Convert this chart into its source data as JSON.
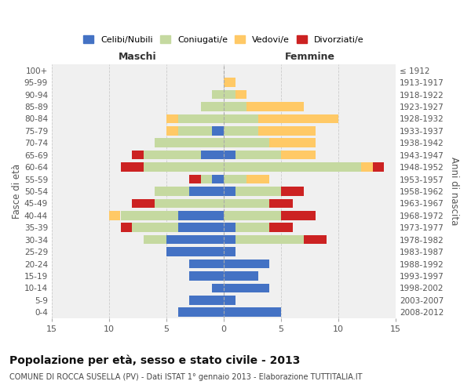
{
  "age_groups": [
    "100+",
    "95-99",
    "90-94",
    "85-89",
    "80-84",
    "75-79",
    "70-74",
    "65-69",
    "60-64",
    "55-59",
    "50-54",
    "45-49",
    "40-44",
    "35-39",
    "30-34",
    "25-29",
    "20-24",
    "15-19",
    "10-14",
    "5-9",
    "0-4"
  ],
  "birth_years": [
    "≤ 1912",
    "1913-1917",
    "1918-1922",
    "1923-1927",
    "1928-1932",
    "1933-1937",
    "1938-1942",
    "1943-1947",
    "1948-1952",
    "1953-1957",
    "1958-1962",
    "1963-1967",
    "1968-1972",
    "1973-1977",
    "1978-1982",
    "1983-1987",
    "1988-1992",
    "1993-1997",
    "1998-2002",
    "2003-2007",
    "2008-2012"
  ],
  "males": {
    "celibi": [
      0,
      0,
      0,
      0,
      0,
      1,
      0,
      2,
      0,
      1,
      3,
      0,
      4,
      4,
      5,
      5,
      3,
      3,
      1,
      3,
      4
    ],
    "coniugati": [
      0,
      0,
      1,
      2,
      4,
      3,
      6,
      5,
      7,
      1,
      3,
      6,
      5,
      4,
      2,
      0,
      0,
      0,
      0,
      0,
      0
    ],
    "vedovi": [
      0,
      0,
      0,
      0,
      1,
      1,
      0,
      0,
      0,
      0,
      0,
      0,
      1,
      0,
      0,
      0,
      0,
      0,
      0,
      0,
      0
    ],
    "divorziati": [
      0,
      0,
      0,
      0,
      0,
      0,
      0,
      1,
      2,
      1,
      0,
      2,
      0,
      1,
      0,
      0,
      0,
      0,
      0,
      0,
      0
    ]
  },
  "females": {
    "nubili": [
      0,
      0,
      0,
      0,
      0,
      0,
      0,
      1,
      0,
      0,
      1,
      0,
      0,
      1,
      1,
      1,
      4,
      3,
      4,
      1,
      5
    ],
    "coniugate": [
      0,
      0,
      1,
      2,
      3,
      3,
      4,
      4,
      12,
      2,
      4,
      4,
      5,
      3,
      6,
      0,
      0,
      0,
      0,
      0,
      0
    ],
    "vedove": [
      0,
      1,
      1,
      5,
      7,
      5,
      4,
      3,
      1,
      2,
      0,
      0,
      0,
      0,
      0,
      0,
      0,
      0,
      0,
      0,
      0
    ],
    "divorziate": [
      0,
      0,
      0,
      0,
      0,
      0,
      0,
      0,
      1,
      0,
      2,
      2,
      3,
      2,
      2,
      0,
      0,
      0,
      0,
      0,
      0
    ]
  },
  "colors": {
    "celibi_nubili": "#4472c4",
    "coniugati": "#c5d9a0",
    "vedovi": "#ffc966",
    "divorziati": "#cc2222"
  },
  "title": "Popolazione per età, sesso e stato civile - 2013",
  "subtitle": "COMUNE DI ROCCA SUSELLA (PV) - Dati ISTAT 1° gennaio 2013 - Elaborazione TUTTITALIA.IT",
  "label_maschi": "Maschi",
  "label_femmine": "Femmine",
  "ylabel_left": "Fasce di età",
  "ylabel_right": "Anni di nascita",
  "legend_labels": [
    "Celibi/Nubili",
    "Coniugati/e",
    "Vedovi/e",
    "Divorziati/e"
  ],
  "xlim": 15,
  "bg_color": "#ffffff",
  "plot_bg": "#f0f0f0"
}
